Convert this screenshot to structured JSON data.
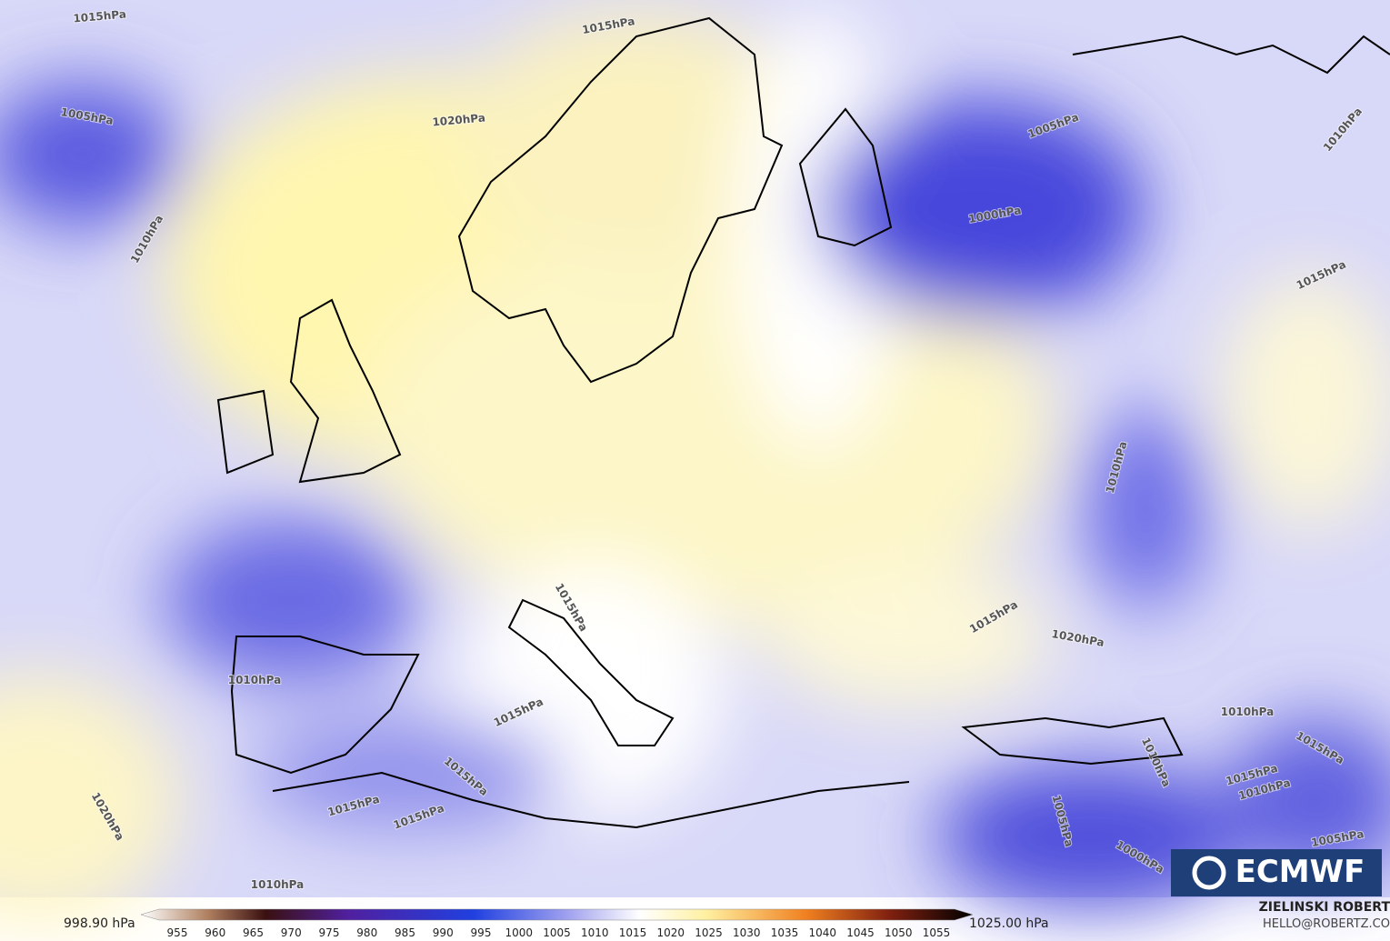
{
  "map": {
    "contour_labels": [
      "1015hPa",
      "1015hPa",
      "1005hPa",
      "1020hPa",
      "1010hPa",
      "1005hPa",
      "1000hPa",
      "1010hPa",
      "1015hPa",
      "1010hPa",
      "1015hPa",
      "1015hPa",
      "1020hPa",
      "1010hPa",
      "1015hPa",
      "1010hPa",
      "1015hPa",
      "1015hPa",
      "1010hPa",
      "1015hPa",
      "1010hPa",
      "1020hPa",
      "1005hPa",
      "1015hPa",
      "1015hPa",
      "1005hPa",
      "1000hPa",
      "1010hPa"
    ],
    "logo": "ECMWF"
  },
  "colorbar": {
    "min_label": "998.90 hPa",
    "max_label": "1025.00 hPa",
    "ticks": [
      955,
      960,
      965,
      970,
      975,
      980,
      985,
      990,
      995,
      1000,
      1005,
      1010,
      1015,
      1020,
      1025,
      1030,
      1035,
      1040,
      1045,
      1050,
      1055
    ]
  },
  "credit": {
    "author": "ZIELINSKI ROBERT",
    "email": "HELLO@ROBERTZ.CO"
  }
}
